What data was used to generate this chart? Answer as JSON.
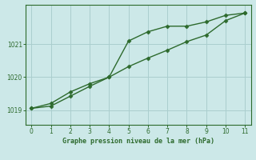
{
  "x": [
    0,
    1,
    2,
    3,
    4,
    5,
    6,
    7,
    8,
    9,
    10,
    11
  ],
  "line1_y": [
    1019.05,
    1019.2,
    1019.55,
    1019.8,
    1020.0,
    1021.1,
    1021.38,
    1021.55,
    1021.55,
    1021.68,
    1021.88,
    1021.95
  ],
  "line2_y": [
    1019.05,
    1019.12,
    1019.42,
    1019.72,
    1020.0,
    1020.32,
    1020.58,
    1020.82,
    1021.08,
    1021.28,
    1021.72,
    1021.95
  ],
  "line_color": "#2d6a2d",
  "bg_color": "#cce8e8",
  "grid_color": "#aacece",
  "xlabel": "Graphe pression niveau de la mer (hPa)",
  "xlabel_color": "#2d6a2d",
  "ylabel_ticks": [
    1019,
    1020,
    1021
  ],
  "xlim": [
    -0.3,
    11.3
  ],
  "ylim": [
    1018.55,
    1022.2
  ],
  "xticks": [
    0,
    1,
    2,
    3,
    4,
    5,
    6,
    7,
    8,
    9,
    10,
    11
  ],
  "marker": "D",
  "marker_size": 2.5,
  "line_width": 1.0,
  "tick_labelsize": 5.5,
  "xlabel_fontsize": 6.0
}
